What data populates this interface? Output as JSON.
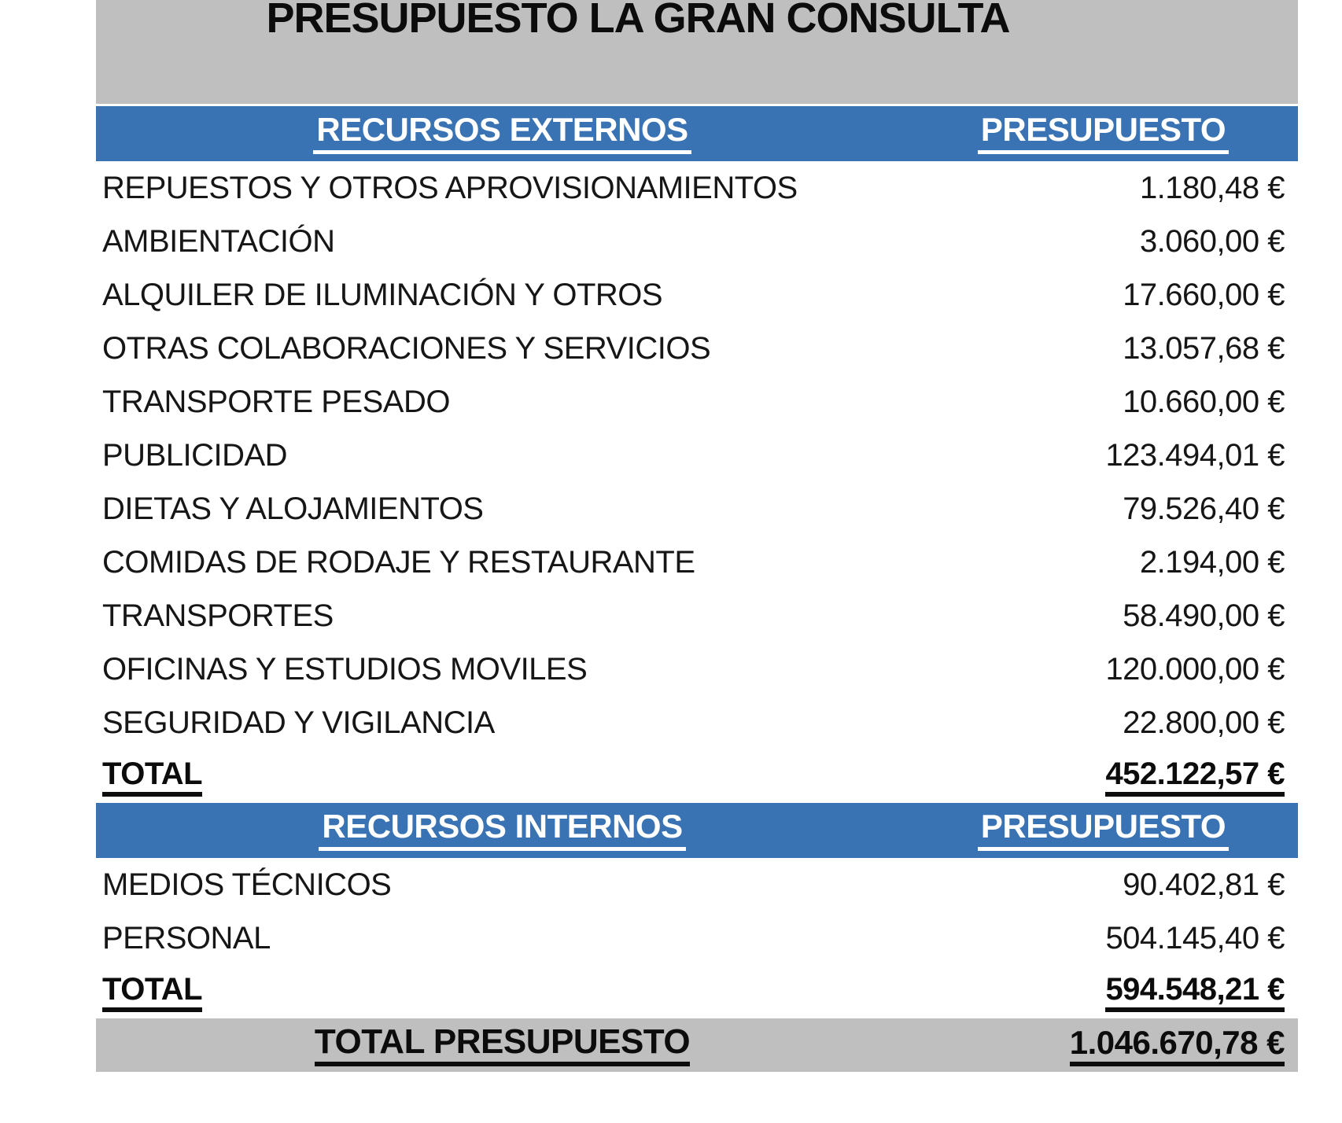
{
  "title": "PRESUPUESTO LA GRAN CONSULTA",
  "colors": {
    "header_blue": "#3973b4",
    "block_gray": "#bfbfbf",
    "text_black": "#0c0c0c"
  },
  "sections": [
    {
      "header": {
        "label": "RECURSOS EXTERNOS",
        "value_label": "PRESUPUESTO"
      },
      "rows": [
        {
          "label": "REPUESTOS Y OTROS APROVISIONAMIENTOS",
          "value": "1.180,48 €"
        },
        {
          "label": "AMBIENTACIÓN",
          "value": "3.060,00 €"
        },
        {
          "label": "ALQUILER DE ILUMINACIÓN Y OTROS",
          "value": "17.660,00 €"
        },
        {
          "label": "OTRAS COLABORACIONES Y SERVICIOS",
          "value": "13.057,68 €"
        },
        {
          "label": "TRANSPORTE PESADO",
          "value": "10.660,00 €"
        },
        {
          "label": "PUBLICIDAD",
          "value": "123.494,01 €"
        },
        {
          "label": "DIETAS Y ALOJAMIENTOS",
          "value": "79.526,40 €"
        },
        {
          "label": "COMIDAS DE RODAJE Y RESTAURANTE",
          "value": "2.194,00 €"
        },
        {
          "label": "TRANSPORTES",
          "value": "58.490,00 €"
        },
        {
          "label": "OFICINAS Y ESTUDIOS MOVILES",
          "value": "120.000,00 €"
        },
        {
          "label": "SEGURIDAD Y VIGILANCIA",
          "value": "22.800,00 €"
        }
      ],
      "total": {
        "label": "TOTAL",
        "value": "452.122,57 €"
      }
    },
    {
      "header": {
        "label": "RECURSOS INTERNOS",
        "value_label": "PRESUPUESTO"
      },
      "rows": [
        {
          "label": "MEDIOS TÉCNICOS",
          "value": "90.402,81 €"
        },
        {
          "label": "PERSONAL",
          "value": "504.145,40 €"
        }
      ],
      "total": {
        "label": "TOTAL",
        "value": "594.548,21 €"
      }
    }
  ],
  "footer": {
    "label": "TOTAL PRESUPUESTO",
    "value": "1.046.670,78 €"
  }
}
